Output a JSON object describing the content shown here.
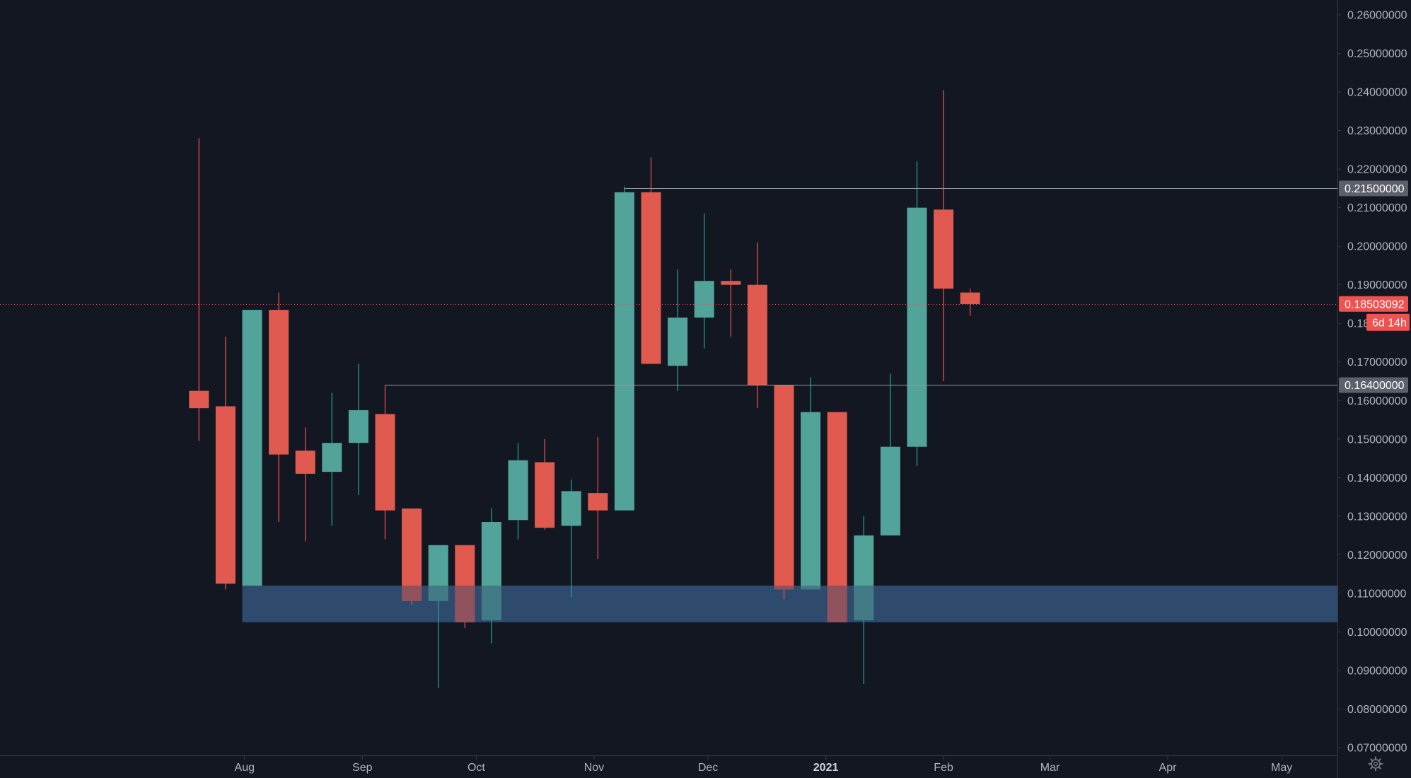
{
  "colors": {
    "background": "#131722",
    "up": "#26a69a",
    "down": "#ef5350",
    "up_body": "#52a49a",
    "down_body": "#e05a4f",
    "zone": "#2e4a6d",
    "hline": "#8e9aa6",
    "price_line": "#ef5350",
    "axis_text": "#b2b5be",
    "gray_badge": "#5d606b"
  },
  "chart_data": {
    "type": "candlestick",
    "timeframe": "1W",
    "y_axis": {
      "ylim": [
        0.0665,
        0.2665
      ],
      "ticks": [
        "0.07000000",
        "0.08000000",
        "0.09000000",
        "0.10000000",
        "0.11000000",
        "0.12000000",
        "0.13000000",
        "0.14000000",
        "0.15000000",
        "0.16000000",
        "0.17000000",
        "0.18000000",
        "0.19000000",
        "0.20000000",
        "0.21000000",
        "0.22000000",
        "0.23000000",
        "0.24000000",
        "0.25000000",
        "0.26000000"
      ],
      "position": "right"
    },
    "x_axis": {
      "ticks": [
        {
          "label": "Aug",
          "date": "2020-08-01"
        },
        {
          "label": "Sep",
          "date": "2020-09-01"
        },
        {
          "label": "Oct",
          "date": "2020-10-01"
        },
        {
          "label": "Nov",
          "date": "2020-11-01"
        },
        {
          "label": "Dec",
          "date": "2020-12-01"
        },
        {
          "label": "2021",
          "date": "2021-01-01",
          "bold": true
        },
        {
          "label": "Feb",
          "date": "2021-02-01"
        },
        {
          "label": "Mar",
          "date": "2021-03-01"
        },
        {
          "label": "Apr",
          "date": "2021-04-01"
        },
        {
          "label": "May",
          "date": "2021-05-01"
        }
      ]
    },
    "candles": [
      {
        "date": "2020-07-20",
        "open": 0.1625,
        "high": 0.228,
        "low": 0.1495,
        "close": 0.158
      },
      {
        "date": "2020-07-27",
        "open": 0.1585,
        "high": 0.1765,
        "low": 0.111,
        "close": 0.1125
      },
      {
        "date": "2020-08-03",
        "open": 0.112,
        "high": 0.1835,
        "low": 0.112,
        "close": 0.1835
      },
      {
        "date": "2020-08-10",
        "open": 0.1835,
        "high": 0.188,
        "low": 0.1285,
        "close": 0.146
      },
      {
        "date": "2020-08-17",
        "open": 0.147,
        "high": 0.153,
        "low": 0.1235,
        "close": 0.141
      },
      {
        "date": "2020-08-24",
        "open": 0.1415,
        "high": 0.162,
        "low": 0.1275,
        "close": 0.149
      },
      {
        "date": "2020-08-31",
        "open": 0.149,
        "high": 0.1695,
        "low": 0.1355,
        "close": 0.1575
      },
      {
        "date": "2020-09-07",
        "open": 0.1565,
        "high": 0.164,
        "low": 0.124,
        "close": 0.1315
      },
      {
        "date": "2020-09-14",
        "open": 0.132,
        "high": 0.132,
        "low": 0.107,
        "close": 0.108
      },
      {
        "date": "2020-09-21",
        "open": 0.108,
        "high": 0.1225,
        "low": 0.0855,
        "close": 0.1225
      },
      {
        "date": "2020-09-28",
        "open": 0.1225,
        "high": 0.1225,
        "low": 0.101,
        "close": 0.1025
      },
      {
        "date": "2020-10-05",
        "open": 0.103,
        "high": 0.132,
        "low": 0.097,
        "close": 0.1285
      },
      {
        "date": "2020-10-12",
        "open": 0.129,
        "high": 0.149,
        "low": 0.124,
        "close": 0.1445
      },
      {
        "date": "2020-10-19",
        "open": 0.144,
        "high": 0.15,
        "low": 0.1265,
        "close": 0.127
      },
      {
        "date": "2020-10-26",
        "open": 0.1275,
        "high": 0.1395,
        "low": 0.109,
        "close": 0.1365
      },
      {
        "date": "2020-11-02",
        "open": 0.136,
        "high": 0.1505,
        "low": 0.119,
        "close": 0.1315
      },
      {
        "date": "2020-11-09",
        "open": 0.1315,
        "high": 0.2155,
        "low": 0.1315,
        "close": 0.214
      },
      {
        "date": "2020-11-16",
        "open": 0.214,
        "high": 0.223,
        "low": 0.1695,
        "close": 0.1695
      },
      {
        "date": "2020-11-23",
        "open": 0.169,
        "high": 0.194,
        "low": 0.1625,
        "close": 0.1815
      },
      {
        "date": "2020-11-30",
        "open": 0.1815,
        "high": 0.2085,
        "low": 0.1735,
        "close": 0.191
      },
      {
        "date": "2020-12-07",
        "open": 0.191,
        "high": 0.194,
        "low": 0.1765,
        "close": 0.19
      },
      {
        "date": "2020-12-14",
        "open": 0.19,
        "high": 0.201,
        "low": 0.158,
        "close": 0.164
      },
      {
        "date": "2020-12-21",
        "open": 0.164,
        "high": 0.164,
        "low": 0.1085,
        "close": 0.111
      },
      {
        "date": "2020-12-28",
        "open": 0.111,
        "high": 0.166,
        "low": 0.111,
        "close": 0.157
      },
      {
        "date": "2021-01-04",
        "open": 0.157,
        "high": 0.157,
        "low": 0.1025,
        "close": 0.1025
      },
      {
        "date": "2021-01-11",
        "open": 0.103,
        "high": 0.13,
        "low": 0.0865,
        "close": 0.125
      },
      {
        "date": "2021-01-18",
        "open": 0.125,
        "high": 0.167,
        "low": 0.125,
        "close": 0.148
      },
      {
        "date": "2021-01-25",
        "open": 0.148,
        "high": 0.222,
        "low": 0.143,
        "close": 0.21
      },
      {
        "date": "2021-02-01",
        "open": 0.2095,
        "high": 0.2405,
        "low": 0.165,
        "close": 0.189
      },
      {
        "date": "2021-02-08",
        "open": 0.188,
        "high": 0.189,
        "low": 0.182,
        "close": 0.185
      }
    ],
    "horizontal_lines": [
      {
        "price": 0.215,
        "label": "0.21500000",
        "start_date": "2020-11-09"
      },
      {
        "price": 0.164,
        "label": "0.16400000",
        "start_date": "2020-09-07"
      }
    ],
    "zone": {
      "from": 0.1025,
      "to": 0.112,
      "start_date": "2020-08-03"
    },
    "last_price": {
      "price": 0.18503092,
      "label": "0.18503092",
      "countdown": "6d 14h"
    }
  }
}
